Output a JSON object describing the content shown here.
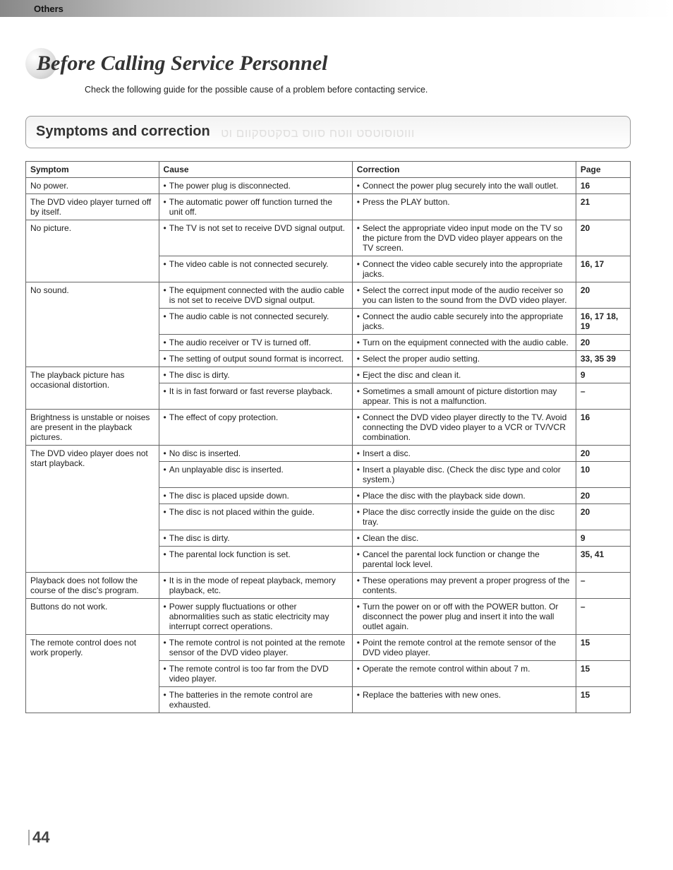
{
  "header_tab": "Others",
  "title": "Before Calling Service Personnel",
  "subtitle": "Check the following guide for the possible cause of a problem before contacting service.",
  "section_title": "Symptoms and correction",
  "columns": {
    "symptom": "Symptom",
    "cause": "Cause",
    "correction": "Correction",
    "page": "Page"
  },
  "rows": [
    {
      "symptom": "No power.",
      "span": 1,
      "items": [
        {
          "cause": "The power plug is disconnected.",
          "correction": "Connect the power plug securely into the wall outlet.",
          "page": "16"
        }
      ]
    },
    {
      "symptom": "The DVD video player turned off by itself.",
      "span": 1,
      "items": [
        {
          "cause": "The automatic power off function turned the unit off.",
          "correction": "Press the PLAY button.",
          "page": "21"
        }
      ]
    },
    {
      "symptom": "No picture.",
      "span": 2,
      "items": [
        {
          "cause": "The TV is not set to receive DVD signal output.",
          "correction": "Select the appropriate video input mode on the TV so the picture from the DVD video player appears on the TV screen.",
          "page": "20"
        },
        {
          "cause": "The video cable is not connected securely.",
          "correction": "Connect the video cable securely into the appropriate jacks.",
          "page": "16, 17"
        }
      ]
    },
    {
      "symptom": "No sound.",
      "span": 4,
      "items": [
        {
          "cause": "The equipment connected with the audio cable is not set to receive DVD signal output.",
          "correction": "Select the correct input mode of the audio receiver so you can listen to the sound from the DVD video player.",
          "page": "20"
        },
        {
          "cause": "The audio cable is not connected securely.",
          "correction": "Connect the audio cable securely into the appropriate jacks.",
          "page": "16, 17 18, 19"
        },
        {
          "cause": "The audio receiver or TV is turned off.",
          "correction": "Turn on the equipment connected with the audio cable.",
          "page": "20"
        },
        {
          "cause": "The setting of output sound format is incorrect.",
          "correction": "Select the proper audio setting.",
          "page": "33, 35 39"
        }
      ]
    },
    {
      "symptom": "The playback picture has occasional distortion.",
      "span": 2,
      "items": [
        {
          "cause": "The disc is dirty.",
          "correction": "Eject the disc and clean it.",
          "page": "9"
        },
        {
          "cause": "It is in fast forward or fast reverse playback.",
          "correction": "Sometimes a small amount of picture distortion may appear. This is not a malfunction.",
          "page": "–"
        }
      ]
    },
    {
      "symptom": "Brightness is unstable or noises are present in the playback pictures.",
      "span": 1,
      "items": [
        {
          "cause": "The effect of copy protection.",
          "correction": "Connect the DVD video player directly to the TV.  Avoid connecting the DVD video player to a VCR or TV/VCR combination.",
          "page": "16"
        }
      ]
    },
    {
      "symptom": "The DVD video player does not start playback.",
      "span": 6,
      "items": [
        {
          "cause": "No disc is inserted.",
          "correction": "Insert a disc.",
          "page": "20"
        },
        {
          "cause": "An unplayable disc is inserted.",
          "correction": "Insert a playable disc. (Check the disc type and color system.)",
          "page": "10"
        },
        {
          "cause": "The disc is placed upside down.",
          "correction": "Place the disc with the playback side down.",
          "page": "20"
        },
        {
          "cause": "The disc is not placed within the guide.",
          "correction": "Place the disc correctly inside the guide on the disc tray.",
          "page": "20"
        },
        {
          "cause": "The disc is dirty.",
          "correction": "Clean the disc.",
          "page": "9"
        },
        {
          "cause": "The parental lock function is set.",
          "correction": "Cancel the parental lock function or change the parental lock level.",
          "page": "35, 41"
        }
      ]
    },
    {
      "symptom": "Playback does not follow the course of the disc's program.",
      "span": 1,
      "items": [
        {
          "cause": "It is in the mode of repeat playback, memory playback, etc.",
          "correction": "These operations may prevent a proper progress of the contents.",
          "page": "–"
        }
      ]
    },
    {
      "symptom": "Buttons do not work.",
      "span": 1,
      "items": [
        {
          "cause": "Power supply fluctuations or other abnormalities such as static electricity may interrupt correct operations.",
          "correction": "Turn the power on or off with the POWER button. Or disconnect the power plug and insert it into the wall outlet again.",
          "page": "–"
        }
      ]
    },
    {
      "symptom": "The remote control does not work properly.",
      "span": 3,
      "items": [
        {
          "cause": "The remote control is not pointed at the remote sensor of the DVD video player.",
          "correction": "Point the remote control at the remote sensor of the DVD video player.",
          "page": "15"
        },
        {
          "cause": "The remote control is too far from the DVD video player.",
          "correction": "Operate the remote control within about 7 m.",
          "page": "15"
        },
        {
          "cause": "The batteries in the remote control are exhausted.",
          "correction": "Replace the batteries with new ones.",
          "page": "15"
        }
      ]
    }
  ],
  "page_number": "44"
}
